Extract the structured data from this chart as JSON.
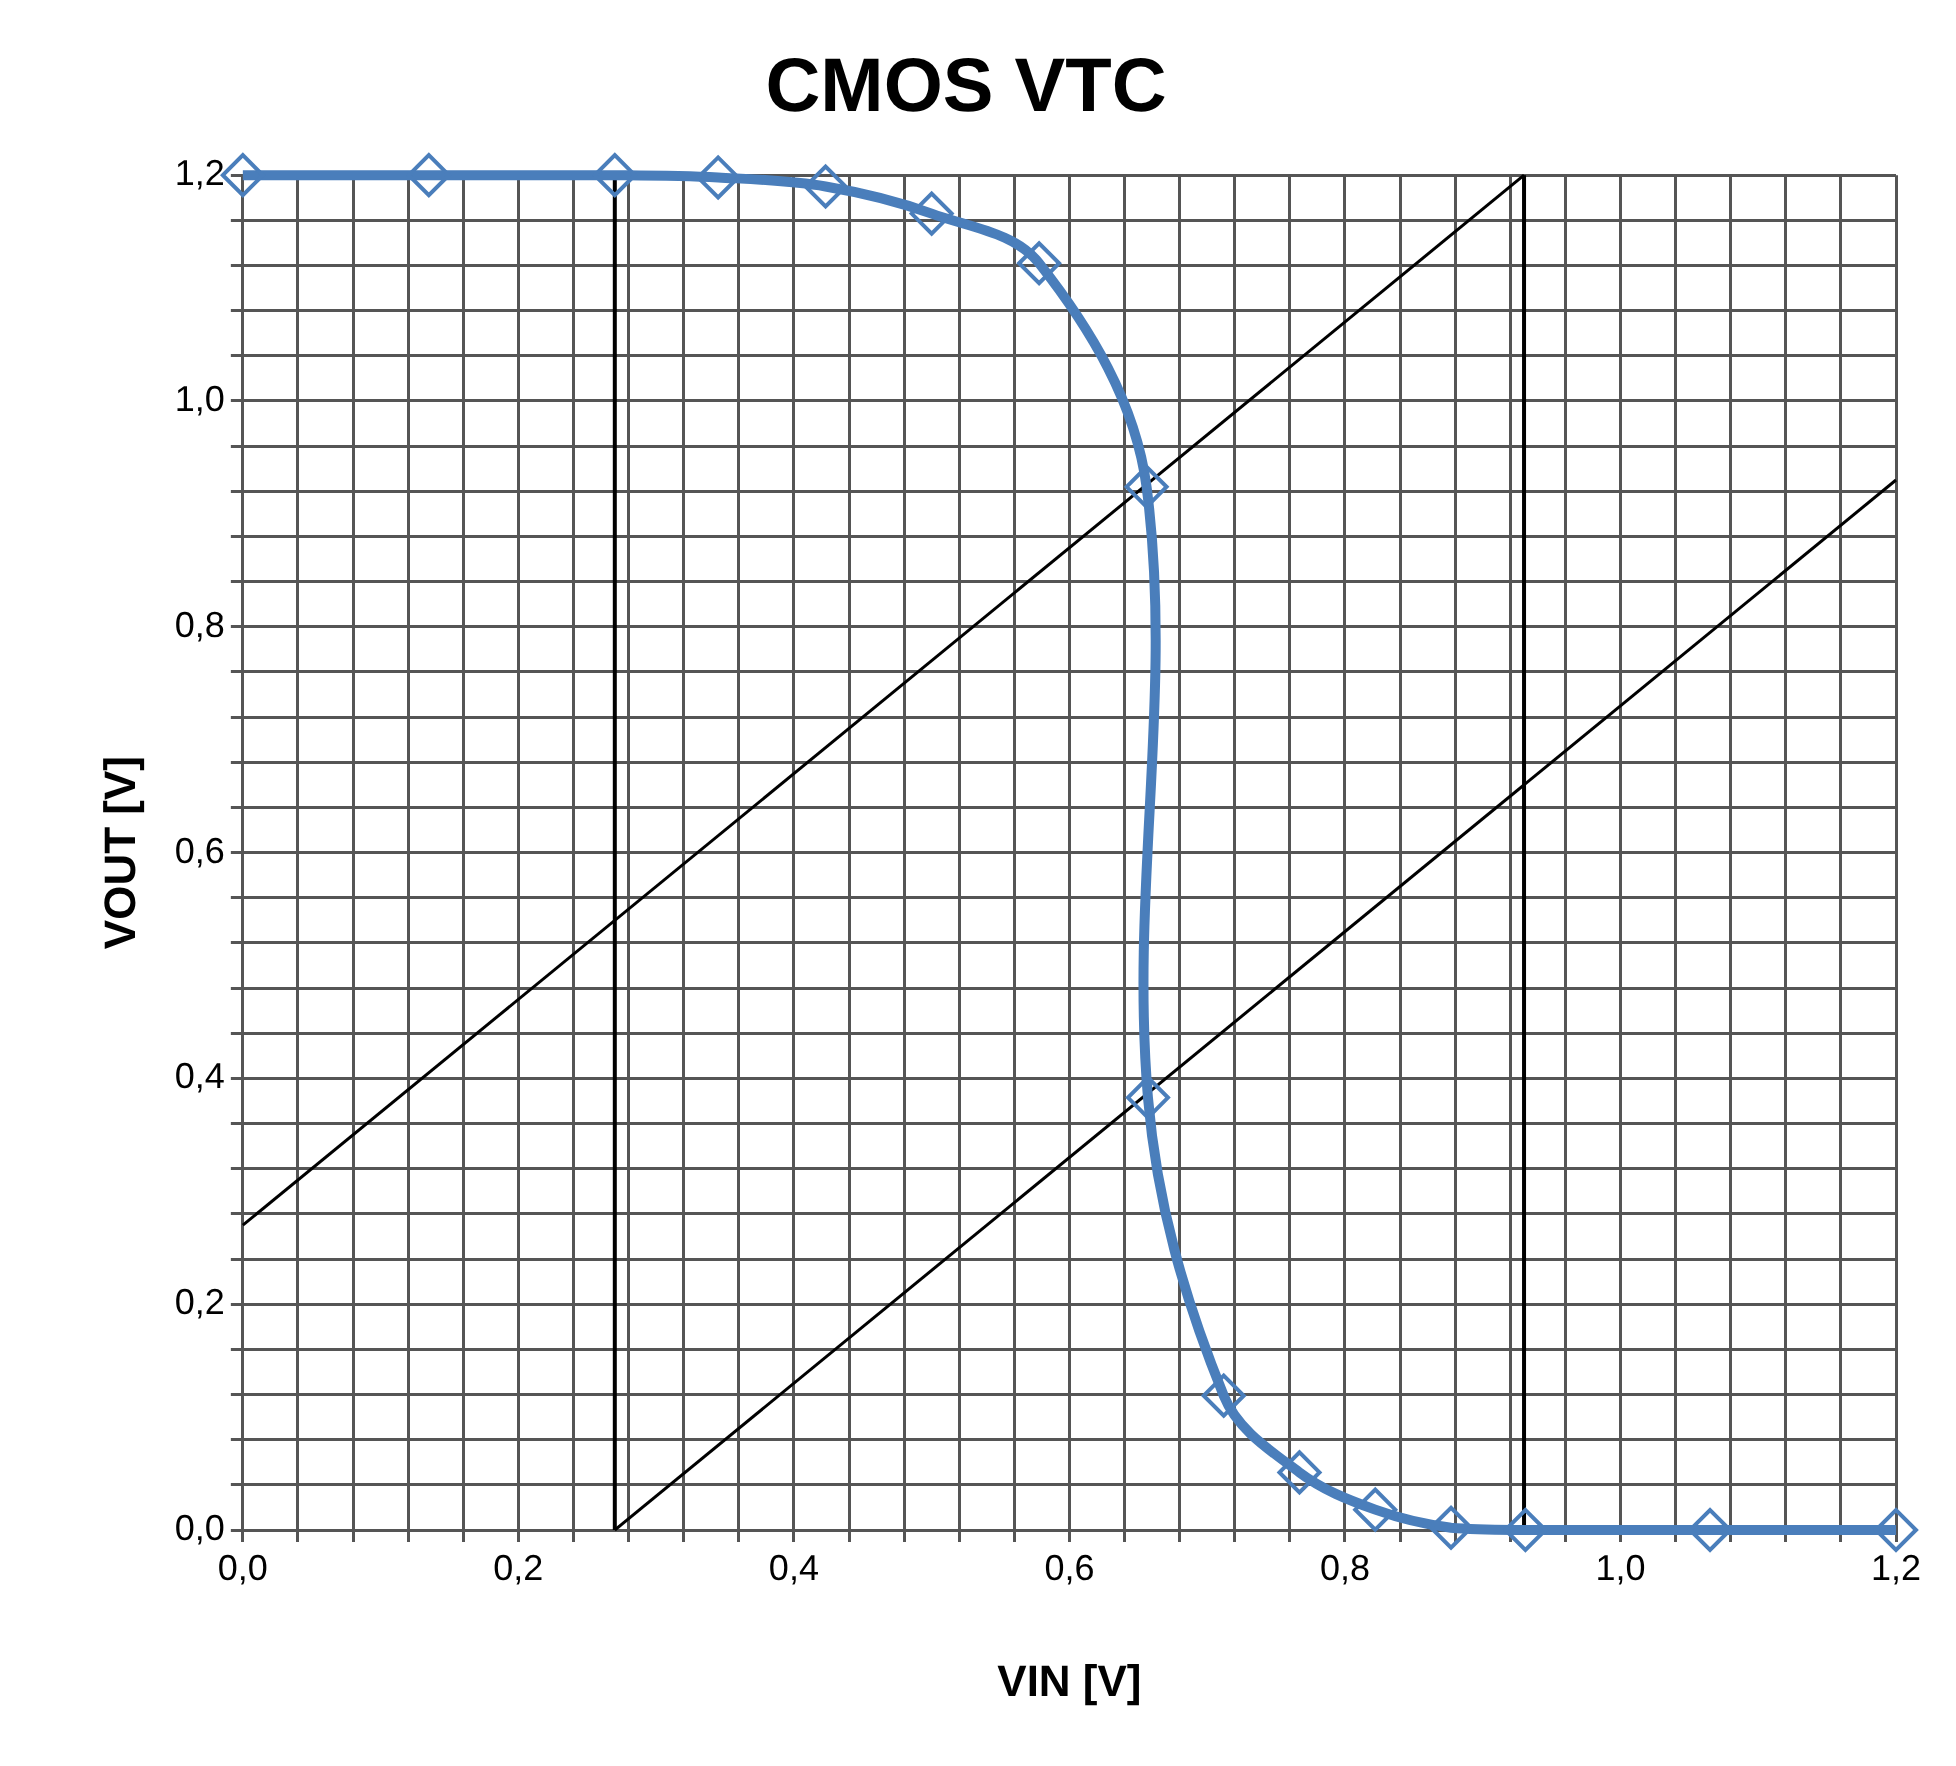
{
  "chart_data": {
    "type": "line",
    "title": "CMOS VTC",
    "xlabel": "VIN [V]",
    "ylabel": "VOUT [V]",
    "xlim": [
      0,
      1.2
    ],
    "ylim": [
      0,
      1.2
    ],
    "xticks": [
      {
        "value": 0,
        "label": "0,0"
      },
      {
        "value": 0.04,
        "label": null
      },
      {
        "value": 0.08,
        "label": null
      },
      {
        "value": 0.12,
        "label": null
      },
      {
        "value": 0.16,
        "label": null
      },
      {
        "value": 0.2,
        "label": "0,2"
      },
      {
        "value": 0.24,
        "label": null
      },
      {
        "value": 0.28,
        "label": null
      },
      {
        "value": 0.32,
        "label": null
      },
      {
        "value": 0.36,
        "label": null
      },
      {
        "value": 0.4,
        "label": "0,4"
      },
      {
        "value": 0.44,
        "label": null
      },
      {
        "value": 0.48,
        "label": null
      },
      {
        "value": 0.52,
        "label": null
      },
      {
        "value": 0.56,
        "label": null
      },
      {
        "value": 0.6,
        "label": "0,6"
      },
      {
        "value": 0.64,
        "label": null
      },
      {
        "value": 0.68,
        "label": null
      },
      {
        "value": 0.72,
        "label": null
      },
      {
        "value": 0.76,
        "label": null
      },
      {
        "value": 0.8,
        "label": "0,8"
      },
      {
        "value": 0.84,
        "label": null
      },
      {
        "value": 0.88,
        "label": null
      },
      {
        "value": 0.92,
        "label": null
      },
      {
        "value": 0.96,
        "label": null
      },
      {
        "value": 1.0,
        "label": "1,0"
      },
      {
        "value": 1.04,
        "label": null
      },
      {
        "value": 1.08,
        "label": null
      },
      {
        "value": 1.12,
        "label": null
      },
      {
        "value": 1.16,
        "label": null
      },
      {
        "value": 1.2,
        "label": "1,2"
      }
    ],
    "yticks": [
      {
        "value": 0,
        "label": "0,0"
      },
      {
        "value": 0.04,
        "label": null
      },
      {
        "value": 0.08,
        "label": null
      },
      {
        "value": 0.12,
        "label": null
      },
      {
        "value": 0.16,
        "label": null
      },
      {
        "value": 0.2,
        "label": "0,2"
      },
      {
        "value": 0.24,
        "label": null
      },
      {
        "value": 0.28,
        "label": null
      },
      {
        "value": 0.32,
        "label": null
      },
      {
        "value": 0.36,
        "label": null
      },
      {
        "value": 0.4,
        "label": "0,4"
      },
      {
        "value": 0.44,
        "label": null
      },
      {
        "value": 0.48,
        "label": null
      },
      {
        "value": 0.52,
        "label": null
      },
      {
        "value": 0.56,
        "label": null
      },
      {
        "value": 0.6,
        "label": "0,6"
      },
      {
        "value": 0.64,
        "label": null
      },
      {
        "value": 0.68,
        "label": null
      },
      {
        "value": 0.72,
        "label": null
      },
      {
        "value": 0.76,
        "label": null
      },
      {
        "value": 0.8,
        "label": "0,8"
      },
      {
        "value": 0.84,
        "label": null
      },
      {
        "value": 0.88,
        "label": null
      },
      {
        "value": 0.92,
        "label": null
      },
      {
        "value": 0.96,
        "label": null
      },
      {
        "value": 1.0,
        "label": "1,0"
      },
      {
        "value": 1.04,
        "label": null
      },
      {
        "value": 1.08,
        "label": null
      },
      {
        "value": 1.12,
        "label": null
      },
      {
        "value": 1.16,
        "label": null
      },
      {
        "value": 1.2,
        "label": "1,2"
      }
    ],
    "grid": true,
    "legend": false,
    "series": [
      {
        "color": "#4a7ebb",
        "marker": "diamond",
        "line_style": "solid",
        "x": [
          0,
          0.135,
          0.27,
          0.345,
          0.423,
          0.5,
          0.578,
          0.656,
          0.657,
          0.712,
          0.767,
          0.822,
          0.877,
          0.931,
          1.065,
          1.2
        ],
        "values": [
          1.2,
          1.2,
          1.2,
          1.198,
          1.19,
          1.166,
          1.122,
          0.924,
          0.383,
          0.119,
          0.051,
          0.018,
          0.002,
          0.0,
          0.0,
          0.0
        ]
      },
      {
        "color": "#000000",
        "marker": "none",
        "line_style": "solid",
        "x": [
          0,
          0.93
        ],
        "values": [
          0.27,
          1.2
        ]
      },
      {
        "color": "#000000",
        "marker": "none",
        "line_style": "solid",
        "x": [
          0.27,
          1.2
        ],
        "values": [
          0,
          0.93
        ]
      }
    ],
    "ref_lines": [
      {
        "axis": "x",
        "value": 0.27,
        "label": null,
        "color": "#000000"
      },
      {
        "axis": "x",
        "value": 0.93,
        "label": null,
        "color": "#000000"
      }
    ]
  }
}
